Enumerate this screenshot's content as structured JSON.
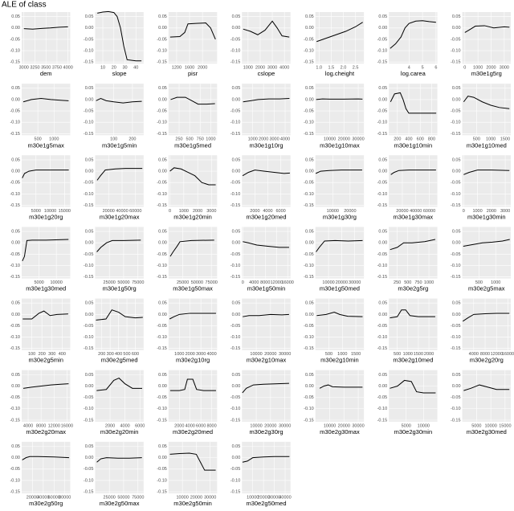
{
  "title": "ALE of class",
  "ylim": [
    -0.157,
    0.07
  ],
  "yticks": [
    0.05,
    {
      "value": 0,
      "label": "0.00"
    },
    -0.05,
    {
      "value": -0.1,
      "label": "-0.10"
    },
    -0.15
  ],
  "chart_data": [
    {
      "type": "line",
      "x_label": "dem",
      "xlim": [
        2950,
        4050
      ],
      "xticks": [
        3000,
        3250,
        3500,
        3750,
        4000
      ],
      "x": [
        3000,
        3200,
        3400,
        3600,
        3800,
        4000
      ],
      "values": [
        -0.003,
        -0.005,
        -0.002,
        0,
        0.003,
        0.005
      ]
    },
    {
      "type": "line",
      "x_label": "slope",
      "xlim": [
        3,
        47
      ],
      "xticks": [
        10,
        20,
        30,
        40
      ],
      "x": [
        5,
        10,
        15,
        20,
        23,
        26,
        29,
        32,
        40,
        45
      ],
      "values": [
        0.065,
        0.07,
        0.072,
        0.068,
        0.05,
        0,
        -0.08,
        -0.14,
        -0.145,
        -0.145
      ]
    },
    {
      "type": "line",
      "x_label": "pisr",
      "xlim": [
        950,
        2450
      ],
      "xticks": [
        1200,
        1600,
        2000
      ],
      "x": [
        1000,
        1300,
        1450,
        1550,
        1800,
        2100,
        2250,
        2400
      ],
      "values": [
        -0.04,
        -0.038,
        -0.02,
        0.018,
        0.02,
        0.022,
        0,
        -0.05
      ]
    },
    {
      "type": "line",
      "x_label": "cslope",
      "xlim": [
        500,
        4500
      ],
      "xticks": [
        1000,
        2000,
        3000,
        4000
      ],
      "x": [
        600,
        1200,
        1800,
        2400,
        3000,
        3400,
        3800,
        4400
      ],
      "values": [
        -0.005,
        -0.015,
        -0.03,
        -0.01,
        0.03,
        0,
        -0.035,
        -0.04
      ]
    },
    {
      "type": "line",
      "x_label": "log.cheight",
      "xlim": [
        0.85,
        2.85
      ],
      "xticks": [
        {
          "value": 1,
          "label": "1.0"
        },
        1.5,
        {
          "value": 2,
          "label": "2.0"
        },
        2.5
      ],
      "x": [
        0.9,
        1.3,
        1.7,
        2.1,
        2.5,
        2.8
      ],
      "values": [
        -0.06,
        -0.045,
        -0.03,
        -0.015,
        0.005,
        0.025
      ]
    },
    {
      "type": "line",
      "x_label": "log.carea",
      "xlim": [
        2.5,
        6.1
      ],
      "xticks": [
        4,
        5,
        6
      ],
      "x": [
        2.6,
        3.0,
        3.4,
        3.7,
        4.0,
        4.5,
        5.0,
        5.5,
        6.0
      ],
      "values": [
        -0.09,
        -0.07,
        -0.04,
        0,
        0.02,
        0.03,
        0.032,
        0.028,
        0.025
      ]
    },
    {
      "type": "line",
      "x_label": "m30e1g5rg",
      "xlim": [
        -200,
        3500
      ],
      "xticks": [
        0,
        1000,
        2000,
        3000
      ],
      "x": [
        0,
        300,
        800,
        1500,
        2200,
        3000,
        3400
      ],
      "values": [
        -0.02,
        -0.01,
        0.008,
        0.01,
        0,
        0.005,
        0.003
      ]
    },
    {
      "type": "line",
      "x_label": "m30e1g5max",
      "xlim": [
        0,
        1500
      ],
      "xticks": [
        500,
        1000
      ],
      "x": [
        50,
        300,
        600,
        900,
        1200,
        1450
      ],
      "values": [
        -0.01,
        0,
        0.005,
        0,
        -0.003,
        -0.005
      ]
    },
    {
      "type": "line",
      "x_label": "m30e1g5min",
      "xlim": [
        0,
        260
      ],
      "xticks": [
        100,
        200
      ],
      "x": [
        5,
        30,
        60,
        100,
        150,
        200,
        250
      ],
      "values": [
        -0.005,
        0.005,
        -0.005,
        -0.01,
        -0.015,
        -0.01,
        -0.008
      ]
    },
    {
      "type": "line",
      "x_label": "m30e1g5med",
      "xlim": [
        0,
        1150
      ],
      "xticks": [
        250,
        500,
        750,
        1000
      ],
      "x": [
        50,
        200,
        400,
        550,
        700,
        900,
        1100
      ],
      "values": [
        0,
        0.01,
        0.01,
        -0.005,
        -0.02,
        -0.02,
        -0.018
      ]
    },
    {
      "type": "line",
      "x_label": "m30e1g10rg",
      "xlim": [
        0,
        4500
      ],
      "xticks": [
        1000,
        2000,
        3000,
        4000
      ],
      "x": [
        100,
        800,
        1500,
        2500,
        3500,
        4400
      ],
      "values": [
        -0.01,
        -0.005,
        0,
        0.003,
        0.003,
        0.005
      ]
    },
    {
      "type": "line",
      "x_label": "m30e1g10max",
      "xlim": [
        0,
        34000
      ],
      "xticks": [
        10000,
        20000,
        30000
      ],
      "x": [
        500,
        5000,
        10000,
        20000,
        30000,
        33000
      ],
      "values": [
        0,
        0.003,
        0.002,
        0.002,
        0.003,
        0.002
      ]
    },
    {
      "type": "line",
      "x_label": "m30e1g10min",
      "xlim": [
        50,
        900
      ],
      "xticks": [
        200,
        400,
        600,
        800
      ],
      "x": [
        80,
        150,
        250,
        300,
        350,
        400,
        500,
        700,
        880
      ],
      "values": [
        -0.01,
        0.025,
        0.03,
        0,
        -0.04,
        -0.06,
        -0.06,
        -0.06,
        -0.06
      ]
    },
    {
      "type": "line",
      "x_label": "m30e1g10med",
      "xlim": [
        0,
        1700
      ],
      "xticks": [
        500,
        1000,
        1500
      ],
      "x": [
        50,
        200,
        400,
        700,
        1000,
        1300,
        1650
      ],
      "values": [
        -0.01,
        0.015,
        0.01,
        -0.01,
        -0.025,
        -0.035,
        -0.04
      ]
    },
    {
      "type": "line",
      "x_label": "m30e1g20rg",
      "xlim": [
        0,
        17000
      ],
      "xticks": [
        5000,
        10000,
        15000
      ],
      "x": [
        200,
        1000,
        2500,
        5000,
        10000,
        16500
      ],
      "values": [
        -0.03,
        -0.01,
        0,
        0.005,
        0.005,
        0.005
      ]
    },
    {
      "type": "line",
      "x_label": "m30e1g20max",
      "xlim": [
        0,
        72000
      ],
      "xticks": [
        20000,
        40000,
        60000
      ],
      "x": [
        3000,
        8000,
        15000,
        30000,
        45000,
        70000
      ],
      "values": [
        -0.04,
        -0.02,
        0.005,
        0.01,
        0.012,
        0.012
      ]
    },
    {
      "type": "line",
      "x_label": "m30e1g20min",
      "xlim": [
        -100,
        3400
      ],
      "xticks": [
        0,
        1000,
        2000,
        3000
      ],
      "x": [
        0,
        300,
        800,
        1300,
        1800,
        2300,
        2800,
        3300
      ],
      "values": [
        0,
        0.015,
        0.01,
        -0.005,
        -0.02,
        -0.05,
        -0.06,
        -0.06
      ]
    },
    {
      "type": "line",
      "x_label": "m30e1g20med",
      "xlim": [
        0,
        7500
      ],
      "xticks": [
        2000,
        4000,
        6000
      ],
      "x": [
        100,
        1000,
        2000,
        3500,
        5000,
        6500,
        7400
      ],
      "values": [
        -0.02,
        -0.005,
        0.005,
        0,
        -0.005,
        -0.01,
        -0.008
      ]
    },
    {
      "type": "line",
      "x_label": "m30e1g30rg",
      "xlim": [
        0,
        28000
      ],
      "xticks": [
        10000,
        20000
      ],
      "x": [
        200,
        3000,
        8000,
        15000,
        22000,
        27000
      ],
      "values": [
        -0.01,
        0,
        0.003,
        0.005,
        0.005,
        0.005
      ]
    },
    {
      "type": "line",
      "x_label": "m30e1g30max",
      "xlim": [
        0,
        72000
      ],
      "xticks": [
        20000,
        40000,
        60000
      ],
      "x": [
        3000,
        8000,
        15000,
        30000,
        50000,
        70000
      ],
      "values": [
        -0.015,
        -0.005,
        0.003,
        0.005,
        0.005,
        0.005
      ]
    },
    {
      "type": "line",
      "x_label": "m30e1g30min",
      "xlim": [
        -100,
        3400
      ],
      "xticks": [
        0,
        1000,
        2000,
        3000
      ],
      "x": [
        0,
        400,
        1000,
        2000,
        3300
      ],
      "values": [
        -0.015,
        -0.005,
        0.005,
        0.005,
        0.003
      ]
    },
    {
      "type": "line",
      "x_label": "m30e1g30med",
      "xlim": [
        0,
        14000
      ],
      "xticks": [
        5000,
        10000
      ],
      "x": [
        200,
        800,
        1500,
        3000,
        7000,
        13500
      ],
      "values": [
        -0.08,
        -0.06,
        0.01,
        0.012,
        0.012,
        0.015
      ]
    },
    {
      "type": "line",
      "x_label": "m30e1g50rg",
      "xlim": [
        0,
        85000
      ],
      "xticks": [
        25000,
        50000,
        75000
      ],
      "x": [
        3000,
        10000,
        20000,
        30000,
        50000,
        80000
      ],
      "values": [
        -0.04,
        -0.02,
        0,
        0.01,
        0.01,
        0.012
      ]
    },
    {
      "type": "line",
      "x_label": "m30e1g50max",
      "xlim": [
        0,
        85000
      ],
      "xticks": [
        25000,
        50000,
        75000
      ],
      "x": [
        3000,
        8000,
        15000,
        20000,
        40000,
        80000
      ],
      "values": [
        -0.06,
        -0.04,
        -0.015,
        0.005,
        0.01,
        0.012
      ]
    },
    {
      "type": "line",
      "x_label": "m30e1g50min",
      "xlim": [
        -300,
        17000
      ],
      "xticks": [
        0,
        4000,
        8000,
        12000,
        16000
      ],
      "x": [
        0,
        2000,
        5000,
        9000,
        13000,
        16500
      ],
      "values": [
        0.005,
        0,
        -0.01,
        -0.015,
        -0.02,
        -0.02
      ]
    },
    {
      "type": "line",
      "x_label": "m30e1g50med",
      "xlim": [
        0,
        37000
      ],
      "xticks": [
        10000,
        20000,
        30000
      ],
      "x": [
        500,
        3000,
        7000,
        15000,
        25000,
        36000
      ],
      "values": [
        -0.04,
        -0.02,
        0.008,
        0.01,
        0.008,
        0.01
      ]
    },
    {
      "type": "line",
      "x_label": "m30e2g5rg",
      "xlim": [
        50,
        1200
      ],
      "xticks": [
        250,
        500,
        750,
        1000
      ],
      "x": [
        80,
        250,
        400,
        600,
        900,
        1150
      ],
      "values": [
        -0.03,
        -0.02,
        0,
        0,
        0.005,
        0.015
      ]
    },
    {
      "type": "line",
      "x_label": "m30e2g5max",
      "xlim": [
        0,
        1450
      ],
      "xticks": [
        500,
        1000
      ],
      "x": [
        30,
        300,
        600,
        900,
        1200,
        1420
      ],
      "values": [
        -0.015,
        -0.008,
        0,
        0.003,
        0.008,
        0.015
      ]
    },
    {
      "type": "line",
      "x_label": "m30e2g5min",
      "xlim": [
        0,
        480
      ],
      "xticks": [
        100,
        200,
        300,
        400
      ],
      "x": [
        10,
        100,
        170,
        220,
        280,
        350,
        460
      ],
      "values": [
        -0.02,
        -0.02,
        0.005,
        0.015,
        -0.005,
        0,
        0.002
      ]
    },
    {
      "type": "line",
      "x_label": "m30e2g5med",
      "xlim": [
        120,
        700
      ],
      "xticks": [
        200,
        300,
        400,
        500,
        600
      ],
      "x": [
        130,
        250,
        320,
        400,
        480,
        600,
        690
      ],
      "values": [
        -0.025,
        -0.02,
        0.02,
        0.01,
        -0.01,
        -0.015,
        -0.013
      ]
    },
    {
      "type": "line",
      "x_label": "m30e2g10rg",
      "xlim": [
        0,
        4500
      ],
      "xticks": [
        1000,
        2000,
        3000,
        4000
      ],
      "x": [
        100,
        500,
        1000,
        2000,
        3500,
        4400
      ],
      "values": [
        -0.02,
        -0.01,
        0,
        0.005,
        0.005,
        0.005
      ]
    },
    {
      "type": "line",
      "x_label": "m30e2g10max",
      "xlim": [
        0,
        34000
      ],
      "xticks": [
        10000,
        20000,
        30000
      ],
      "x": [
        500,
        5000,
        12000,
        20000,
        28000,
        33000
      ],
      "values": [
        -0.01,
        -0.005,
        -0.005,
        0,
        -0.002,
        0
      ]
    },
    {
      "type": "line",
      "x_label": "m30e2g10min",
      "xlim": [
        0,
        1800
      ],
      "xticks": [
        500,
        1000,
        1500
      ],
      "x": [
        50,
        400,
        700,
        900,
        1200,
        1750
      ],
      "values": [
        -0.005,
        0,
        0.01,
        0,
        -0.008,
        -0.01
      ]
    },
    {
      "type": "line",
      "x_label": "m30e2g10med",
      "xlim": [
        100,
        2400
      ],
      "xticks": [
        500,
        1000,
        1500,
        2000
      ],
      "x": [
        150,
        500,
        700,
        900,
        1100,
        1500,
        2300
      ],
      "values": [
        -0.015,
        -0.01,
        0.02,
        0.02,
        -0.005,
        -0.01,
        -0.01
      ]
    },
    {
      "type": "line",
      "x_label": "m30e2g20rg",
      "xlim": [
        0,
        17000
      ],
      "xticks": [
        4000,
        8000,
        12000,
        16000
      ],
      "x": [
        200,
        2000,
        4000,
        8000,
        12000,
        16500
      ],
      "values": [
        -0.03,
        -0.015,
        0,
        0.003,
        0.005,
        0.005
      ]
    },
    {
      "type": "line",
      "x_label": "m30e2g20max",
      "xlim": [
        2000,
        17000
      ],
      "xticks": [
        4000,
        8000,
        12000,
        16000
      ],
      "x": [
        2500,
        5000,
        8000,
        11000,
        14000,
        16500
      ],
      "values": [
        -0.01,
        -0.005,
        0,
        0.005,
        0.008,
        0.01
      ]
    },
    {
      "type": "line",
      "x_label": "m30e2g20min",
      "xlim": [
        0,
        6500
      ],
      "xticks": [
        2000,
        4000,
        6000
      ],
      "x": [
        200,
        1500,
        2500,
        3200,
        4000,
        5000,
        6300
      ],
      "values": [
        -0.02,
        -0.015,
        0.025,
        0.035,
        0.01,
        -0.01,
        -0.01
      ]
    },
    {
      "type": "line",
      "x_label": "m30e2g20med",
      "xlim": [
        0,
        9000
      ],
      "xticks": [
        2000,
        4000,
        6000,
        8000
      ],
      "x": [
        300,
        2000,
        3000,
        3500,
        4500,
        5200,
        6500,
        8800
      ],
      "values": [
        -0.02,
        -0.02,
        -0.015,
        0.03,
        0.03,
        -0.015,
        -0.02,
        -0.02
      ]
    },
    {
      "type": "line",
      "x_label": "m30e2g30rg",
      "xlim": [
        0,
        34000
      ],
      "xticks": [
        10000,
        20000,
        30000
      ],
      "x": [
        300,
        3000,
        8000,
        15000,
        25000,
        33000
      ],
      "values": [
        -0.03,
        -0.01,
        0.005,
        0.008,
        0.01,
        0.012
      ]
    },
    {
      "type": "line",
      "x_label": "m30e2g30max",
      "xlim": [
        0,
        34000
      ],
      "xticks": [
        10000,
        20000,
        30000
      ],
      "x": [
        3000,
        6000,
        9000,
        12000,
        20000,
        30000,
        33000
      ],
      "values": [
        -0.01,
        0,
        0.005,
        -0.003,
        -0.005,
        -0.005,
        -0.005
      ]
    },
    {
      "type": "line",
      "x_label": "m30e2g30min",
      "xlim": [
        0,
        14000
      ],
      "xticks": [
        5000,
        10000
      ],
      "x": [
        300,
        2500,
        4500,
        6500,
        8000,
        10000,
        13500
      ],
      "values": [
        -0.01,
        0,
        0.025,
        0.02,
        -0.025,
        -0.03,
        -0.03
      ]
    },
    {
      "type": "line",
      "x_label": "m30e2g30med",
      "xlim": [
        0,
        17000
      ],
      "xticks": [
        5000,
        10000,
        15000
      ],
      "x": [
        500,
        3000,
        6000,
        9000,
        12000,
        16500
      ],
      "values": [
        -0.02,
        -0.01,
        0.005,
        -0.005,
        -0.015,
        -0.015
      ]
    },
    {
      "type": "line",
      "x_label": "m30e2g50rg",
      "xlim": [
        0,
        90000
      ],
      "xticks": [
        20000,
        40000,
        60000,
        80000
      ],
      "x": [
        1000,
        8000,
        15000,
        30000,
        60000,
        88000
      ],
      "values": [
        -0.01,
        0,
        0.005,
        0.005,
        0.003,
        0
      ]
    },
    {
      "type": "line",
      "x_label": "m30e2g50max",
      "xlim": [
        0,
        85000
      ],
      "xticks": [
        25000,
        50000,
        75000
      ],
      "x": [
        3000,
        10000,
        20000,
        40000,
        60000,
        82000
      ],
      "values": [
        -0.02,
        -0.005,
        0,
        -0.002,
        -0.002,
        0
      ]
    },
    {
      "type": "line",
      "x_label": "m30e2g50min",
      "xlim": [
        0,
        35000
      ],
      "xticks": [
        10000,
        20000,
        30000
      ],
      "x": [
        1000,
        8000,
        15000,
        20000,
        23000,
        26000,
        34000
      ],
      "values": [
        0.015,
        0.018,
        0.02,
        0.015,
        -0.02,
        -0.055,
        -0.055
      ]
    },
    {
      "type": "line",
      "x_label": "m30e2g50med",
      "xlim": [
        0,
        45000
      ],
      "xticks": [
        10000,
        20000,
        30000,
        40000
      ],
      "x": [
        500,
        5000,
        10000,
        20000,
        30000,
        44000
      ],
      "values": [
        -0.02,
        -0.015,
        0,
        0.003,
        0.005,
        0.005
      ]
    }
  ]
}
